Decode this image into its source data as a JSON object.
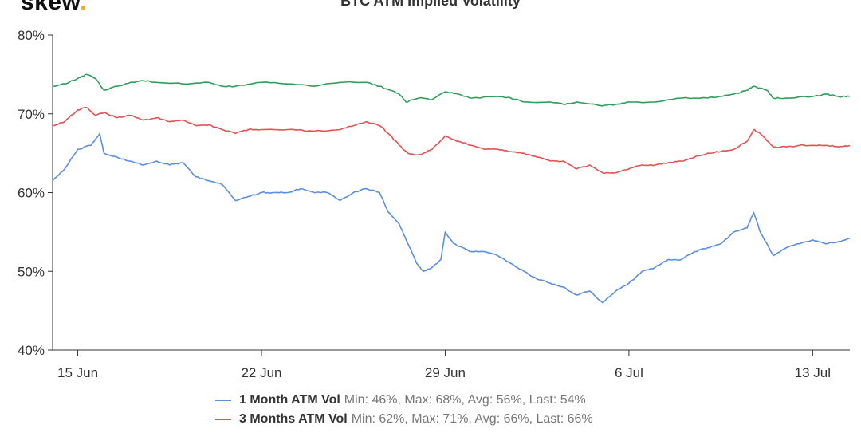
{
  "header": {
    "brand_text": "skew",
    "brand_dot": ".",
    "title": "BTC ATM Implied Volatility"
  },
  "colors": {
    "series_1m": "#5b8ee0",
    "series_3m": "#e55052",
    "series_6m": "#2e9e5a",
    "axis": "#333333",
    "grid": "#e0e0e0"
  },
  "chart_data": {
    "type": "line",
    "title": "BTC ATM Implied Volatility",
    "xlabel": "",
    "ylabel": "",
    "x_ticks": [
      "15 Jun",
      "22 Jun",
      "29 Jun",
      "6 Jul",
      "13 Jul"
    ],
    "y_ticks": [
      "40%",
      "50%",
      "60%",
      "70%",
      "80%"
    ],
    "ylim": [
      40,
      80
    ],
    "grid": false,
    "legend_position": "bottom",
    "x_start": "2020-06-14 01:00",
    "x_end": "2020-07-14 10:00",
    "series": [
      {
        "name": "1 Month ATM Vol",
        "stats": "Min: 46%, Max: 68%, Avg: 56%, Last: 54%",
        "color": "#5b8ee0",
        "points": [
          [
            "2020-06-14 01:00",
            61.5
          ],
          [
            "2020-06-14 12:00",
            63.0
          ],
          [
            "2020-06-15 00:00",
            65.5
          ],
          [
            "2020-06-15 12:00",
            66.0
          ],
          [
            "2020-06-15 20:00",
            67.5
          ],
          [
            "2020-06-16 00:00",
            65.0
          ],
          [
            "2020-06-16 12:00",
            64.5
          ],
          [
            "2020-06-17 00:00",
            64.0
          ],
          [
            "2020-06-17 12:00",
            63.5
          ],
          [
            "2020-06-18 00:00",
            64.0
          ],
          [
            "2020-06-18 12:00",
            63.5
          ],
          [
            "2020-06-19 00:00",
            63.8
          ],
          [
            "2020-06-19 12:00",
            62.0
          ],
          [
            "2020-06-20 00:00",
            61.5
          ],
          [
            "2020-06-20 12:00",
            61.0
          ],
          [
            "2020-06-21 00:00",
            59.0
          ],
          [
            "2020-06-21 12:00",
            59.5
          ],
          [
            "2020-06-22 00:00",
            60.0
          ],
          [
            "2020-06-22 12:00",
            60.0
          ],
          [
            "2020-06-23 00:00",
            60.0
          ],
          [
            "2020-06-23 12:00",
            60.5
          ],
          [
            "2020-06-24 00:00",
            60.0
          ],
          [
            "2020-06-24 12:00",
            60.0
          ],
          [
            "2020-06-25 00:00",
            59.0
          ],
          [
            "2020-06-25 12:00",
            60.0
          ],
          [
            "2020-06-26 00:00",
            60.5
          ],
          [
            "2020-06-26 12:00",
            60.0
          ],
          [
            "2020-06-26 20:00",
            57.5
          ],
          [
            "2020-06-27 06:00",
            56.0
          ],
          [
            "2020-06-27 14:00",
            53.5
          ],
          [
            "2020-06-27 22:00",
            51.0
          ],
          [
            "2020-06-28 04:00",
            50.0
          ],
          [
            "2020-06-28 12:00",
            50.5
          ],
          [
            "2020-06-28 20:00",
            51.5
          ],
          [
            "2020-06-29 00:00",
            55.0
          ],
          [
            "2020-06-29 08:00",
            53.5
          ],
          [
            "2020-06-29 16:00",
            53.0
          ],
          [
            "2020-06-30 00:00",
            52.5
          ],
          [
            "2020-06-30 12:00",
            52.5
          ],
          [
            "2020-07-01 00:00",
            52.0
          ],
          [
            "2020-07-01 12:00",
            51.0
          ],
          [
            "2020-07-02 00:00",
            50.0
          ],
          [
            "2020-07-02 12:00",
            49.0
          ],
          [
            "2020-07-03 00:00",
            48.5
          ],
          [
            "2020-07-03 12:00",
            48.0
          ],
          [
            "2020-07-04 00:00",
            47.0
          ],
          [
            "2020-07-04 12:00",
            47.5
          ],
          [
            "2020-07-05 00:00",
            46.0
          ],
          [
            "2020-07-05 12:00",
            47.5
          ],
          [
            "2020-07-06 00:00",
            48.5
          ],
          [
            "2020-07-06 12:00",
            50.0
          ],
          [
            "2020-07-07 00:00",
            50.5
          ],
          [
            "2020-07-07 12:00",
            51.5
          ],
          [
            "2020-07-08 00:00",
            51.5
          ],
          [
            "2020-07-08 12:00",
            52.5
          ],
          [
            "2020-07-09 00:00",
            53.0
          ],
          [
            "2020-07-09 12:00",
            53.5
          ],
          [
            "2020-07-10 00:00",
            55.0
          ],
          [
            "2020-07-10 12:00",
            55.5
          ],
          [
            "2020-07-10 18:00",
            57.5
          ],
          [
            "2020-07-11 00:00",
            55.0
          ],
          [
            "2020-07-11 12:00",
            52.0
          ],
          [
            "2020-07-12 00:00",
            53.0
          ],
          [
            "2020-07-12 12:00",
            53.5
          ],
          [
            "2020-07-13 00:00",
            54.0
          ],
          [
            "2020-07-13 12:00",
            53.5
          ],
          [
            "2020-07-14 00:00",
            53.8
          ],
          [
            "2020-07-14 10:00",
            54.2
          ]
        ]
      },
      {
        "name": "3 Months ATM Vol",
        "stats": "Min: 62%, Max: 71%, Avg: 66%, Last: 66%",
        "color": "#e55052",
        "points": [
          [
            "2020-06-14 01:00",
            68.5
          ],
          [
            "2020-06-14 12:00",
            69.0
          ],
          [
            "2020-06-15 00:00",
            70.5
          ],
          [
            "2020-06-15 08:00",
            70.8
          ],
          [
            "2020-06-15 16:00",
            69.8
          ],
          [
            "2020-06-16 00:00",
            70.2
          ],
          [
            "2020-06-16 12:00",
            69.5
          ],
          [
            "2020-06-17 00:00",
            69.8
          ],
          [
            "2020-06-17 12:00",
            69.2
          ],
          [
            "2020-06-18 00:00",
            69.5
          ],
          [
            "2020-06-18 12:00",
            69.0
          ],
          [
            "2020-06-19 00:00",
            69.2
          ],
          [
            "2020-06-19 12:00",
            68.5
          ],
          [
            "2020-06-20 00:00",
            68.6
          ],
          [
            "2020-06-20 12:00",
            68.0
          ],
          [
            "2020-06-21 00:00",
            67.5
          ],
          [
            "2020-06-21 12:00",
            68.0
          ],
          [
            "2020-06-22 00:00",
            68.0
          ],
          [
            "2020-06-23 00:00",
            68.0
          ],
          [
            "2020-06-24 00:00",
            67.8
          ],
          [
            "2020-06-25 00:00",
            68.0
          ],
          [
            "2020-06-25 12:00",
            68.5
          ],
          [
            "2020-06-26 00:00",
            69.0
          ],
          [
            "2020-06-26 12:00",
            68.5
          ],
          [
            "2020-06-26 20:00",
            67.5
          ],
          [
            "2020-06-27 06:00",
            66.0
          ],
          [
            "2020-06-27 14:00",
            65.0
          ],
          [
            "2020-06-28 00:00",
            64.8
          ],
          [
            "2020-06-28 12:00",
            65.5
          ],
          [
            "2020-06-29 00:00",
            67.2
          ],
          [
            "2020-06-29 12:00",
            66.5
          ],
          [
            "2020-06-30 00:00",
            66.0
          ],
          [
            "2020-06-30 12:00",
            65.5
          ],
          [
            "2020-07-01 00:00",
            65.5
          ],
          [
            "2020-07-01 12:00",
            65.2
          ],
          [
            "2020-07-02 00:00",
            65.0
          ],
          [
            "2020-07-02 12:00",
            64.5
          ],
          [
            "2020-07-03 00:00",
            64.0
          ],
          [
            "2020-07-03 12:00",
            64.0
          ],
          [
            "2020-07-04 00:00",
            63.0
          ],
          [
            "2020-07-04 12:00",
            63.5
          ],
          [
            "2020-07-05 00:00",
            62.5
          ],
          [
            "2020-07-05 12:00",
            62.5
          ],
          [
            "2020-07-06 00:00",
            63.0
          ],
          [
            "2020-07-06 12:00",
            63.5
          ],
          [
            "2020-07-07 00:00",
            63.5
          ],
          [
            "2020-07-07 12:00",
            63.8
          ],
          [
            "2020-07-08 00:00",
            64.0
          ],
          [
            "2020-07-08 12:00",
            64.5
          ],
          [
            "2020-07-09 00:00",
            65.0
          ],
          [
            "2020-07-09 12:00",
            65.2
          ],
          [
            "2020-07-10 00:00",
            65.5
          ],
          [
            "2020-07-10 12:00",
            66.5
          ],
          [
            "2020-07-10 18:00",
            68.0
          ],
          [
            "2020-07-11 00:00",
            67.5
          ],
          [
            "2020-07-11 12:00",
            65.8
          ],
          [
            "2020-07-12 00:00",
            65.8
          ],
          [
            "2020-07-12 12:00",
            66.0
          ],
          [
            "2020-07-13 00:00",
            66.0
          ],
          [
            "2020-07-13 12:00",
            66.0
          ],
          [
            "2020-07-14 00:00",
            65.8
          ],
          [
            "2020-07-14 10:00",
            66.0
          ]
        ]
      },
      {
        "name": "",
        "stats": "",
        "color": "#2e9e5a",
        "points": [
          [
            "2020-06-14 01:00",
            73.5
          ],
          [
            "2020-06-14 12:00",
            73.8
          ],
          [
            "2020-06-15 00:00",
            74.5
          ],
          [
            "2020-06-15 08:00",
            75.0
          ],
          [
            "2020-06-15 16:00",
            74.5
          ],
          [
            "2020-06-16 00:00",
            73.0
          ],
          [
            "2020-06-16 12:00",
            73.5
          ],
          [
            "2020-06-17 00:00",
            74.0
          ],
          [
            "2020-06-17 12:00",
            74.2
          ],
          [
            "2020-06-18 00:00",
            74.0
          ],
          [
            "2020-06-19 00:00",
            73.8
          ],
          [
            "2020-06-20 00:00",
            74.0
          ],
          [
            "2020-06-20 12:00",
            73.5
          ],
          [
            "2020-06-21 00:00",
            73.5
          ],
          [
            "2020-06-22 00:00",
            74.0
          ],
          [
            "2020-06-23 00:00",
            73.8
          ],
          [
            "2020-06-24 00:00",
            73.5
          ],
          [
            "2020-06-25 00:00",
            74.0
          ],
          [
            "2020-06-26 00:00",
            74.0
          ],
          [
            "2020-06-26 12:00",
            73.5
          ],
          [
            "2020-06-26 22:00",
            73.0
          ],
          [
            "2020-06-27 06:00",
            72.5
          ],
          [
            "2020-06-27 12:00",
            71.5
          ],
          [
            "2020-06-28 00:00",
            72.0
          ],
          [
            "2020-06-28 12:00",
            71.8
          ],
          [
            "2020-06-29 00:00",
            72.8
          ],
          [
            "2020-06-29 12:00",
            72.5
          ],
          [
            "2020-06-30 00:00",
            72.0
          ],
          [
            "2020-07-01 00:00",
            72.2
          ],
          [
            "2020-07-01 12:00",
            72.0
          ],
          [
            "2020-07-02 00:00",
            71.5
          ],
          [
            "2020-07-03 00:00",
            71.5
          ],
          [
            "2020-07-03 12:00",
            71.2
          ],
          [
            "2020-07-04 00:00",
            71.5
          ],
          [
            "2020-07-05 00:00",
            71.0
          ],
          [
            "2020-07-05 12:00",
            71.2
          ],
          [
            "2020-07-06 00:00",
            71.5
          ],
          [
            "2020-07-07 00:00",
            71.5
          ],
          [
            "2020-07-08 00:00",
            72.0
          ],
          [
            "2020-07-09 00:00",
            72.0
          ],
          [
            "2020-07-09 12:00",
            72.2
          ],
          [
            "2020-07-10 00:00",
            72.5
          ],
          [
            "2020-07-10 12:00",
            73.0
          ],
          [
            "2020-07-10 18:00",
            73.5
          ],
          [
            "2020-07-11 06:00",
            73.0
          ],
          [
            "2020-07-11 12:00",
            72.0
          ],
          [
            "2020-07-12 00:00",
            72.0
          ],
          [
            "2020-07-13 00:00",
            72.2
          ],
          [
            "2020-07-13 12:00",
            72.5
          ],
          [
            "2020-07-14 00:00",
            72.2
          ],
          [
            "2020-07-14 10:00",
            72.2
          ]
        ]
      }
    ]
  }
}
